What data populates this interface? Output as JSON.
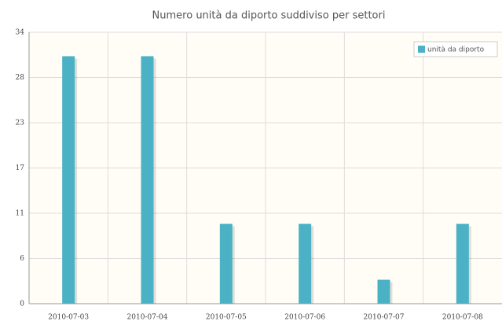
{
  "chart_data": {
    "type": "bar",
    "title": "Numero unità da diporto suddiviso per settori",
    "categories": [
      "2010-07-03",
      "2010-07-04",
      "2010-07-05",
      "2010-07-06",
      "2010-07-07",
      "2010-07-08"
    ],
    "series": [
      {
        "name": "unità da diporto",
        "color": "#4bb2c5",
        "values": [
          31,
          31,
          10,
          10,
          3,
          10
        ]
      }
    ],
    "ylim": [
      0,
      34
    ],
    "yticks": [
      0,
      {
        "value": 5.667,
        "label": "6"
      },
      {
        "value": 11.333,
        "label": "11"
      },
      17,
      {
        "value": 22.667,
        "label": "23"
      },
      {
        "value": 28.333,
        "label": "28"
      },
      34
    ],
    "grid": true,
    "legend": "top-right"
  }
}
